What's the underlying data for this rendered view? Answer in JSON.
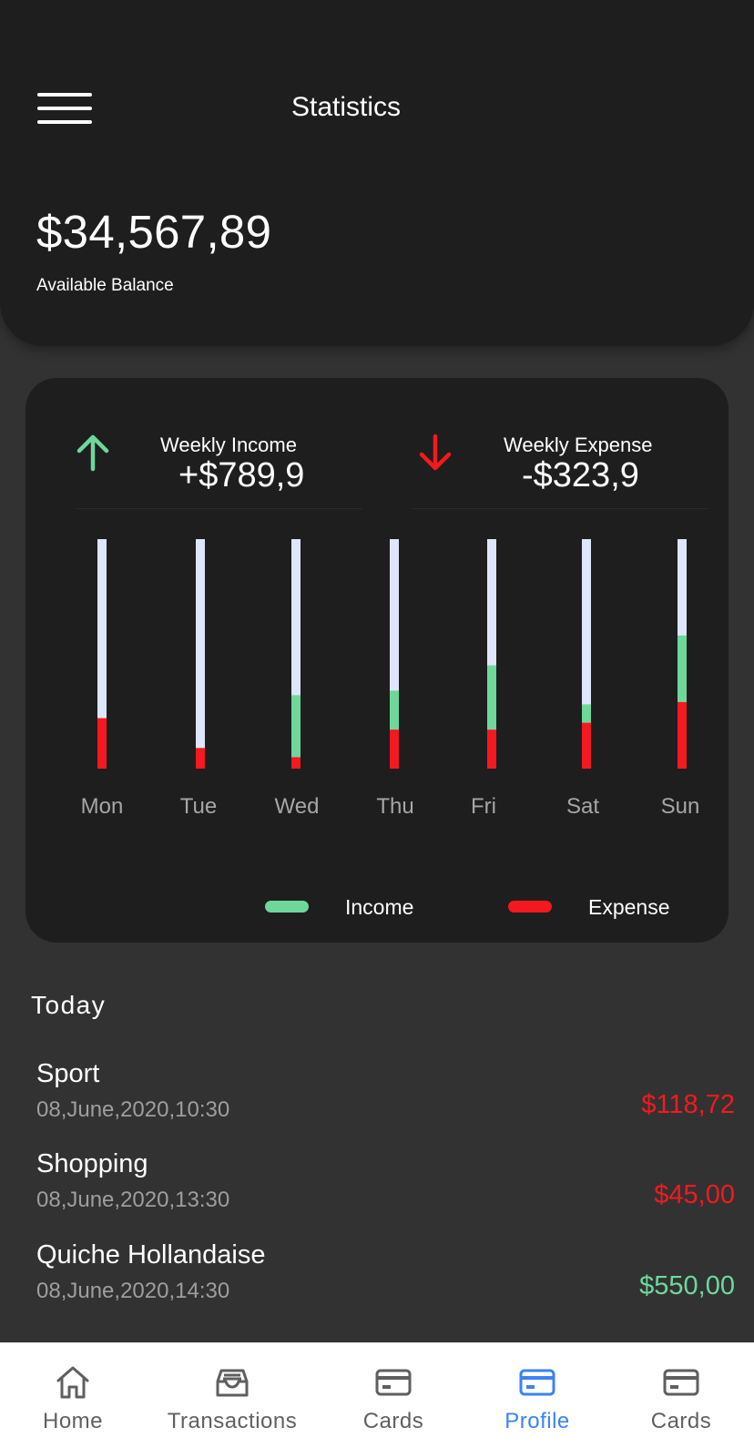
{
  "header": {
    "title": "Statistics",
    "balance": "$34,567,89",
    "balance_label": "Available Balance"
  },
  "stats": {
    "income": {
      "label": "Weekly Income",
      "value": "+$789,9",
      "icon": "arrow-up-icon",
      "color": "#6ed89b"
    },
    "expense": {
      "label": "Weekly Expense",
      "value": "-$323,9",
      "icon": "arrow-down-icon",
      "color": "#f4191f"
    },
    "legend": {
      "income": "Income",
      "expense": "Expense"
    }
  },
  "chart_data": {
    "type": "bar",
    "stacked": true,
    "categories": [
      "Mon",
      "Tue",
      "Wed",
      "Thu",
      "Fri",
      "Sat",
      "Sun"
    ],
    "series": [
      {
        "name": "Expense",
        "color": "#f4191f",
        "values": [
          0.22,
          0.09,
          0.05,
          0.17,
          0.17,
          0.2,
          0.29
        ]
      },
      {
        "name": "Income",
        "color": "#6ed89b",
        "values": [
          0.0,
          0.0,
          0.27,
          0.17,
          0.28,
          0.08,
          0.29
        ]
      }
    ],
    "track_color": "#dde6fb",
    "ylim": [
      0,
      1
    ]
  },
  "today": {
    "title": "Today",
    "transactions": [
      {
        "name": "Sport",
        "date": "08,June,2020,10:30",
        "amount": "$118,72",
        "color": "#f4191f"
      },
      {
        "name": "Shopping",
        "date": "08,June,2020,13:30",
        "amount": "$45,00",
        "color": "#f4191f"
      },
      {
        "name": "Quiche Hollandaise",
        "date": "08,June,2020,14:30",
        "amount": "$550,00",
        "color": "#6ed89b"
      }
    ]
  },
  "nav": {
    "active_color": "#3b82f6",
    "items": [
      {
        "label": "Home",
        "icon": "home-icon",
        "active": false
      },
      {
        "label": "Transactions",
        "icon": "inbox-icon",
        "active": false
      },
      {
        "label": "Cards",
        "icon": "card-icon",
        "active": false
      },
      {
        "label": "Profile",
        "icon": "card-icon",
        "active": true
      },
      {
        "label": "Cards",
        "icon": "card-icon",
        "active": false
      }
    ]
  }
}
